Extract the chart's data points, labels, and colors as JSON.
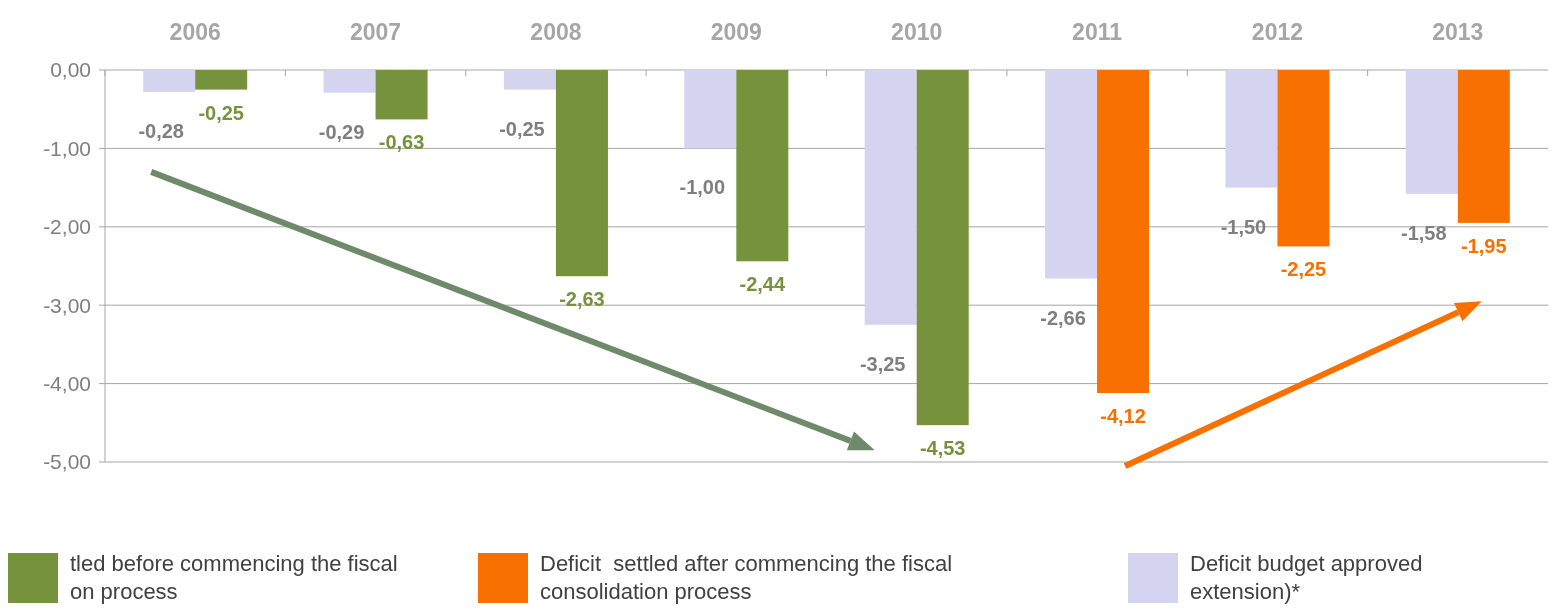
{
  "chart_data": {
    "type": "bar",
    "categories": [
      "2006",
      "2007",
      "2008",
      "2009",
      "2010",
      "2011",
      "2012",
      "2013"
    ],
    "series": [
      {
        "name": "Deficit budget approved extension)*",
        "color": "#d4d4f0",
        "values": [
          -0.28,
          -0.29,
          -0.25,
          -1.0,
          -3.25,
          -2.66,
          -1.5,
          -1.58
        ],
        "value_labels": [
          "-0,28",
          "-0,29",
          "-0,25",
          "-1,00",
          "-3,25",
          "-2,66",
          "-1,50",
          "-1,58"
        ]
      },
      {
        "name": "tled before commencing the fiscal on process",
        "color": "#76923c",
        "values": [
          -0.25,
          -0.63,
          -2.63,
          -2.44,
          -4.53,
          null,
          null,
          null
        ],
        "value_labels": [
          "-0,25",
          "-0,63",
          "-2,63",
          "-2,44",
          "-4,53",
          null,
          null,
          null
        ]
      },
      {
        "name": "Deficit  settled after commencing the fiscal consolidation process",
        "color": "#f77000",
        "values": [
          null,
          null,
          null,
          null,
          null,
          -4.12,
          -2.25,
          -1.95
        ],
        "value_labels": [
          null,
          null,
          null,
          null,
          null,
          "-4,12",
          "-2,25",
          "-1,95"
        ]
      }
    ],
    "ylim": [
      -5,
      0
    ],
    "yticks": [
      {
        "value": 0,
        "label": "0,00"
      },
      {
        "value": -1,
        "label": "-1,00"
      },
      {
        "value": -2,
        "label": "-2,00"
      },
      {
        "value": -3,
        "label": "-3,00"
      },
      {
        "value": -4,
        "label": "-4,00"
      },
      {
        "value": -5,
        "label": "-5,00"
      }
    ],
    "grid": "y",
    "legend": "bottom"
  }
}
